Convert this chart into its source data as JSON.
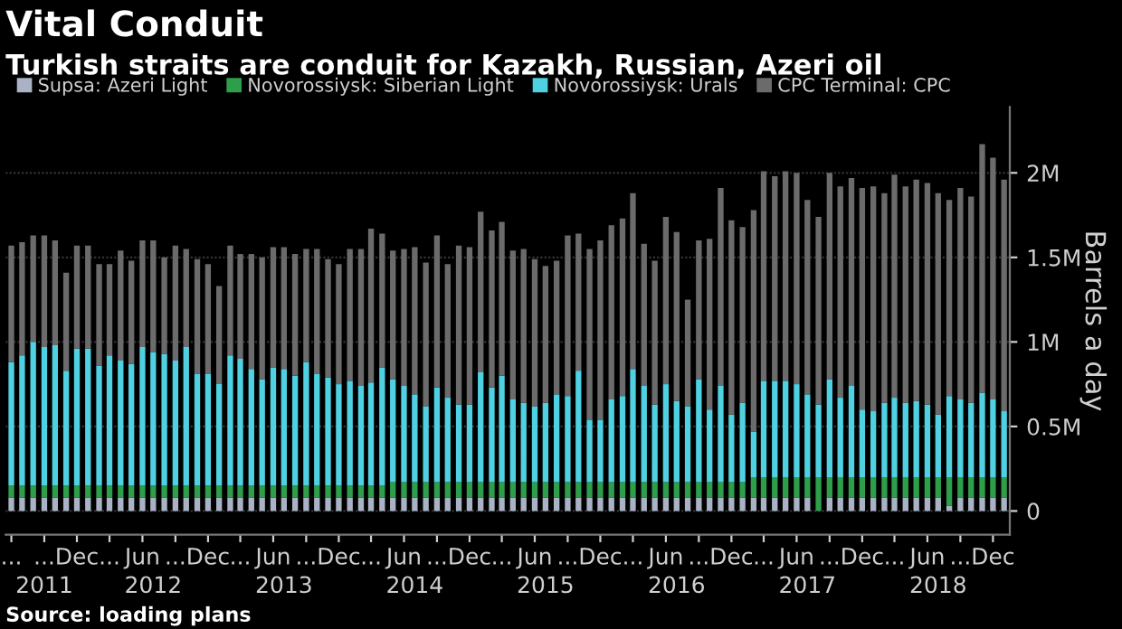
{
  "chart_data": {
    "type": "bar",
    "stacked": true,
    "title": "Vital Conduit",
    "subtitle": "Turkish straits are conduit for Kazakh, Russian, Azeri oil",
    "ylabel": "Barrels a day",
    "annotations": [
      "Source: loading plans"
    ],
    "x": [
      "2011-06",
      "2011-07",
      "2011-08",
      "2011-09",
      "2011-10",
      "2011-11",
      "2011-12",
      "2012-01",
      "2012-02",
      "2012-03",
      "2012-04",
      "2012-05",
      "2012-06",
      "2012-07",
      "2012-08",
      "2012-09",
      "2012-10",
      "2012-11",
      "2012-12",
      "2013-01",
      "2013-02",
      "2013-03",
      "2013-04",
      "2013-05",
      "2013-06",
      "2013-07",
      "2013-08",
      "2013-09",
      "2013-10",
      "2013-11",
      "2013-12",
      "2014-01",
      "2014-02",
      "2014-03",
      "2014-04",
      "2014-05",
      "2014-06",
      "2014-07",
      "2014-08",
      "2014-09",
      "2014-10",
      "2014-11",
      "2014-12",
      "2015-01",
      "2015-02",
      "2015-03",
      "2015-04",
      "2015-05",
      "2015-06",
      "2015-07",
      "2015-08",
      "2015-09",
      "2015-10",
      "2015-11",
      "2015-12",
      "2016-01",
      "2016-02",
      "2016-03",
      "2016-04",
      "2016-05",
      "2016-06",
      "2016-07",
      "2016-08",
      "2016-09",
      "2016-10",
      "2016-11",
      "2016-12",
      "2017-01",
      "2017-02",
      "2017-03",
      "2017-04",
      "2017-05",
      "2017-06",
      "2017-07",
      "2017-08",
      "2017-09",
      "2017-10",
      "2017-11",
      "2017-12",
      "2018-01",
      "2018-02",
      "2018-03",
      "2018-04",
      "2018-05",
      "2018-06",
      "2018-07",
      "2018-08",
      "2018-09",
      "2018-10",
      "2018-11",
      "2018-12",
      "2019-01"
    ],
    "series": [
      {
        "name": "Supsa: Azeri Light",
        "color": "#aab3c5",
        "values": [
          0.08,
          0.08,
          0.08,
          0.08,
          0.08,
          0.08,
          0.08,
          0.08,
          0.08,
          0.08,
          0.08,
          0.08,
          0.08,
          0.08,
          0.08,
          0.08,
          0.08,
          0.08,
          0.08,
          0.08,
          0.08,
          0.08,
          0.08,
          0.08,
          0.08,
          0.08,
          0.08,
          0.08,
          0.08,
          0.08,
          0.08,
          0.08,
          0.08,
          0.08,
          0.08,
          0.08,
          0.08,
          0.08,
          0.08,
          0.08,
          0.08,
          0.08,
          0.08,
          0.08,
          0.08,
          0.08,
          0.08,
          0.08,
          0.08,
          0.08,
          0.08,
          0.08,
          0.08,
          0.08,
          0.08,
          0.08,
          0.08,
          0.08,
          0.08,
          0.08,
          0.08,
          0.08,
          0.08,
          0.08,
          0.08,
          0.08,
          0.08,
          0.08,
          0.08,
          0.08,
          0.08,
          0.08,
          0.08,
          0.08,
          0.0,
          0.08,
          0.08,
          0.08,
          0.08,
          0.08,
          0.08,
          0.08,
          0.08,
          0.08,
          0.08,
          0.08,
          0.03,
          0.08,
          0.08,
          0.08,
          0.08,
          0.08
        ]
      },
      {
        "name": "Novorossiysk: Siberian Light",
        "color": "#2e9e4a",
        "values": [
          0.07,
          0.07,
          0.07,
          0.07,
          0.07,
          0.07,
          0.07,
          0.07,
          0.07,
          0.07,
          0.07,
          0.07,
          0.07,
          0.07,
          0.07,
          0.07,
          0.07,
          0.07,
          0.07,
          0.07,
          0.07,
          0.07,
          0.07,
          0.07,
          0.07,
          0.07,
          0.07,
          0.07,
          0.07,
          0.07,
          0.07,
          0.07,
          0.07,
          0.07,
          0.07,
          0.09,
          0.09,
          0.09,
          0.09,
          0.09,
          0.09,
          0.09,
          0.09,
          0.09,
          0.09,
          0.09,
          0.09,
          0.09,
          0.09,
          0.09,
          0.09,
          0.09,
          0.09,
          0.09,
          0.09,
          0.09,
          0.09,
          0.09,
          0.09,
          0.09,
          0.09,
          0.09,
          0.09,
          0.09,
          0.09,
          0.09,
          0.09,
          0.09,
          0.12,
          0.12,
          0.12,
          0.12,
          0.12,
          0.12,
          0.2,
          0.12,
          0.12,
          0.12,
          0.12,
          0.12,
          0.12,
          0.12,
          0.12,
          0.12,
          0.12,
          0.12,
          0.17,
          0.12,
          0.12,
          0.12,
          0.12,
          0.12
        ]
      },
      {
        "name": "Novorossiysk: Urals",
        "color": "#4fd1e2",
        "values": [
          0.73,
          0.77,
          0.85,
          0.82,
          0.83,
          0.68,
          0.81,
          0.81,
          0.71,
          0.77,
          0.74,
          0.72,
          0.82,
          0.79,
          0.78,
          0.74,
          0.82,
          0.66,
          0.66,
          0.6,
          0.77,
          0.75,
          0.69,
          0.63,
          0.7,
          0.69,
          0.65,
          0.73,
          0.66,
          0.64,
          0.6,
          0.62,
          0.59,
          0.61,
          0.7,
          0.61,
          0.57,
          0.52,
          0.45,
          0.56,
          0.5,
          0.46,
          0.46,
          0.65,
          0.56,
          0.63,
          0.49,
          0.47,
          0.45,
          0.47,
          0.52,
          0.51,
          0.66,
          0.37,
          0.37,
          0.49,
          0.51,
          0.67,
          0.57,
          0.46,
          0.58,
          0.48,
          0.45,
          0.61,
          0.43,
          0.57,
          0.4,
          0.47,
          0.27,
          0.57,
          0.57,
          0.57,
          0.55,
          0.49,
          0.43,
          0.58,
          0.47,
          0.54,
          0.4,
          0.39,
          0.44,
          0.47,
          0.44,
          0.45,
          0.43,
          0.37,
          0.48,
          0.46,
          0.44,
          0.5,
          0.46,
          0.39
        ]
      },
      {
        "name": "CPC Terminal: CPC",
        "color": "#6b6b6b",
        "values": [
          0.69,
          0.67,
          0.63,
          0.66,
          0.62,
          0.58,
          0.61,
          0.61,
          0.6,
          0.54,
          0.65,
          0.61,
          0.63,
          0.66,
          0.57,
          0.68,
          0.58,
          0.68,
          0.65,
          0.58,
          0.65,
          0.62,
          0.68,
          0.72,
          0.71,
          0.72,
          0.72,
          0.67,
          0.74,
          0.7,
          0.71,
          0.78,
          0.81,
          0.91,
          0.79,
          0.76,
          0.81,
          0.87,
          0.85,
          0.9,
          0.79,
          0.94,
          0.93,
          0.95,
          0.93,
          0.91,
          0.88,
          0.91,
          0.87,
          0.81,
          0.79,
          0.95,
          0.81,
          1.01,
          1.06,
          1.03,
          1.05,
          1.04,
          0.84,
          0.85,
          0.99,
          1.0,
          0.63,
          0.82,
          1.01,
          1.17,
          1.15,
          1.04,
          1.31,
          1.24,
          1.21,
          1.24,
          1.25,
          1.15,
          1.11,
          1.22,
          1.25,
          1.23,
          1.31,
          1.33,
          1.24,
          1.32,
          1.28,
          1.31,
          1.31,
          1.31,
          1.16,
          1.25,
          1.22,
          1.47,
          1.43,
          1.37
        ]
      }
    ],
    "x2lim": [
      "2011-05-16",
      "2019-01-17"
    ],
    "xlim": [
      "2011-05-16",
      "2019-01-17"
    ],
    "xticks": [
      {
        "value": "2011-06",
        "label": "..."
      },
      {
        "value": "2011-09",
        "label": "..."
      },
      {
        "value": "2011-12",
        "label": "Dec"
      },
      {
        "value": "2012-03",
        "label": "..."
      },
      {
        "value": "2012-06",
        "label": "Jun"
      },
      {
        "value": "2012-09",
        "label": "..."
      },
      {
        "value": "2012-12",
        "label": "Dec"
      },
      {
        "value": "2013-03",
        "label": "..."
      },
      {
        "value": "2013-06",
        "label": "Jun"
      },
      {
        "value": "2013-09",
        "label": "..."
      },
      {
        "value": "2013-12",
        "label": "Dec"
      },
      {
        "value": "2014-03",
        "label": "..."
      },
      {
        "value": "2014-06",
        "label": "Jun"
      },
      {
        "value": "2014-09",
        "label": "..."
      },
      {
        "value": "2014-12",
        "label": "Dec"
      },
      {
        "value": "2015-03",
        "label": "..."
      },
      {
        "value": "2015-06",
        "label": "Jun"
      },
      {
        "value": "2015-09",
        "label": "..."
      },
      {
        "value": "2015-12",
        "label": "Dec"
      },
      {
        "value": "2016-03",
        "label": "..."
      },
      {
        "value": "2016-06",
        "label": "Jun"
      },
      {
        "value": "2016-09",
        "label": "..."
      },
      {
        "value": "2016-12",
        "label": "Dec"
      },
      {
        "value": "2017-03",
        "label": "..."
      },
      {
        "value": "2017-06",
        "label": "Jun"
      },
      {
        "value": "2017-09",
        "label": "..."
      },
      {
        "value": "2017-12",
        "label": "Dec"
      },
      {
        "value": "2018-03",
        "label": "..."
      },
      {
        "value": "2018-06",
        "label": "Jun"
      },
      {
        "value": "2018-09",
        "label": "..."
      },
      {
        "value": "2018-12",
        "label": "Dec"
      }
    ],
    "x2ticks": [
      {
        "value": "2011-09-01",
        "label": "2011"
      },
      {
        "value": "2012-07-01",
        "label": "2012"
      },
      {
        "value": "2013-07-01",
        "label": "2013"
      },
      {
        "value": "2014-07-01",
        "label": "2014"
      },
      {
        "value": "2015-07-01",
        "label": "2015"
      },
      {
        "value": "2016-07-01",
        "label": "2016"
      },
      {
        "value": "2017-07-01",
        "label": "2017"
      },
      {
        "value": "2018-07-01",
        "label": "2018"
      }
    ],
    "ylim": [
      -0.14,
      2.39
    ],
    "yticks": [
      0,
      {
        "value": 0.5,
        "label": "0.5M"
      },
      {
        "value": 1,
        "label": "1M"
      },
      {
        "value": 1.5,
        "label": "1.5M"
      },
      {
        "value": 2,
        "label": "2M"
      }
    ],
    "grid": "y",
    "legend": "top left"
  }
}
